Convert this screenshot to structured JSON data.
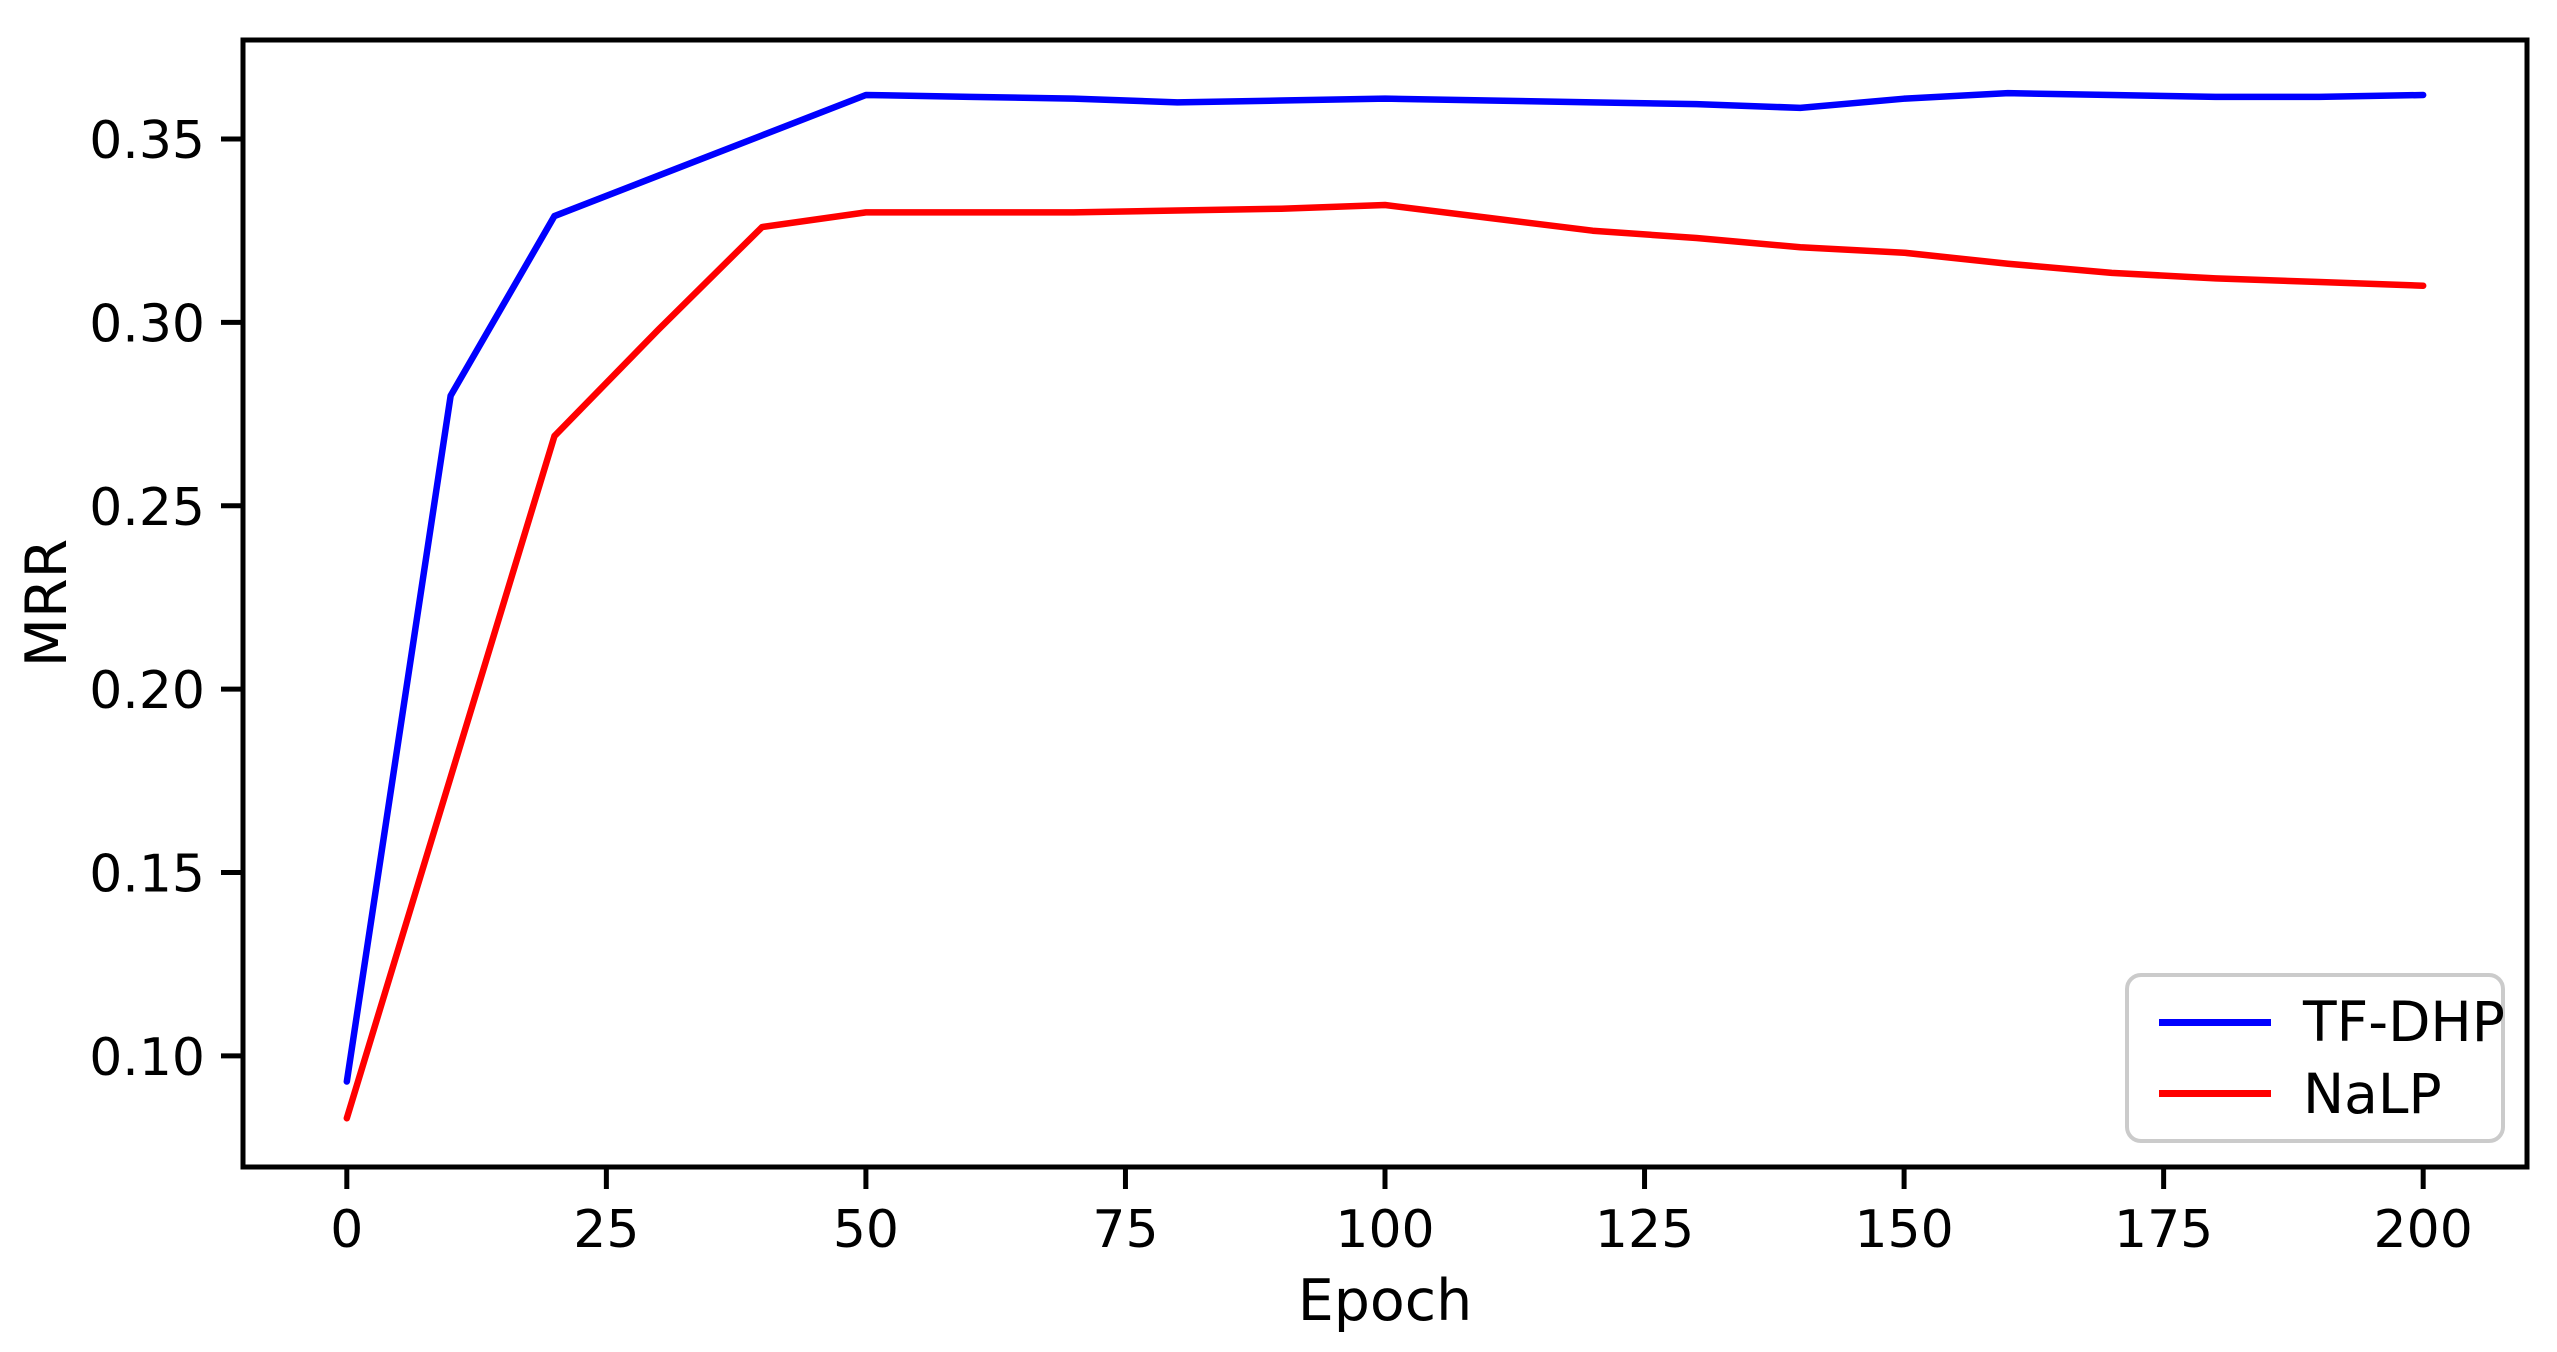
{
  "figure": {
    "background_color": "#ffffff",
    "axis_color": "#000000",
    "legend_border_color": "#cbcbcb"
  },
  "chart_data": {
    "type": "line",
    "title": "",
    "xlabel": "Epoch",
    "ylabel": "MRR",
    "x": [
      0,
      10,
      20,
      30,
      40,
      50,
      60,
      70,
      80,
      90,
      100,
      110,
      120,
      130,
      140,
      150,
      160,
      170,
      180,
      190,
      200
    ],
    "series": [
      {
        "name": "TF-DHP",
        "color": "#0000ff",
        "values": [
          0.093,
          0.28,
          0.329,
          0.34,
          0.351,
          0.362,
          0.3615,
          0.361,
          0.36,
          0.3605,
          0.361,
          0.3605,
          0.36,
          0.3595,
          0.3585,
          0.361,
          0.3625,
          0.362,
          0.3615,
          0.3615,
          0.362
        ]
      },
      {
        "name": "NaLP",
        "color": "#ff0000",
        "values": [
          0.083,
          0.176,
          0.269,
          0.298,
          0.326,
          0.33,
          0.33,
          0.33,
          0.3305,
          0.331,
          0.332,
          0.3285,
          0.325,
          0.323,
          0.3205,
          0.319,
          0.316,
          0.3135,
          0.312,
          0.311,
          0.31
        ]
      }
    ],
    "xlim": [
      -10,
      210
    ],
    "ylim": [
      0.0697,
      0.377
    ],
    "xticks": [
      0,
      25,
      50,
      75,
      100,
      125,
      150,
      175,
      200
    ],
    "yticks": [
      0.1,
      0.15,
      0.2,
      0.25,
      0.3,
      0.35
    ],
    "grid": false,
    "legend_position": "lower right"
  }
}
